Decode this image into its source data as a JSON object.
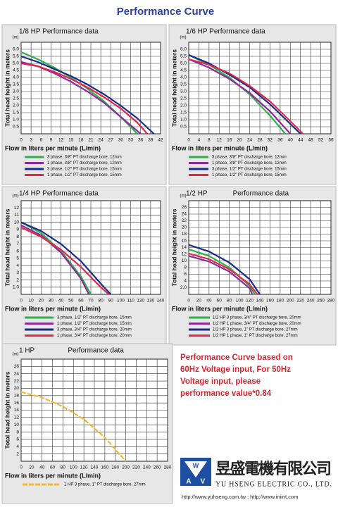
{
  "title": "Performance Curve",
  "chart_data": [
    {
      "type": "line",
      "title": "1/8 HP Performance data",
      "y_unit": "(m)",
      "ylabel": "Total head height in meters",
      "xlabel": "Flow in liters per minute (L/min)",
      "xlim": [
        0,
        42
      ],
      "xticks": [
        0,
        3,
        6,
        9,
        12,
        15,
        18,
        21,
        24,
        27,
        30,
        33,
        36,
        39,
        42
      ],
      "ylim": [
        0,
        6.5
      ],
      "yticks": [
        {
          "value": 0.5,
          "label": "0.5"
        },
        {
          "value": 1,
          "label": "1.0"
        },
        {
          "value": 1.5,
          "label": "1.5"
        },
        {
          "value": 2,
          "label": "2.0"
        },
        {
          "value": 2.5,
          "label": "2.5"
        },
        {
          "value": 3,
          "label": "3.0"
        },
        {
          "value": 3.5,
          "label": "3.5"
        },
        {
          "value": 4,
          "label": "4.0"
        },
        {
          "value": 4.5,
          "label": "4.5"
        },
        {
          "value": 5,
          "label": "5.0"
        },
        {
          "value": 5.5,
          "label": "5.5"
        },
        {
          "value": 6,
          "label": "6.0"
        }
      ],
      "grid": true,
      "series": [
        {
          "name": "3 phase, 3/8\" PT discharge bore, 12mm",
          "color": "#2db24a",
          "x": [
            0,
            5,
            10,
            15,
            20,
            25,
            30,
            35
          ],
          "values": [
            5.8,
            5.3,
            4.7,
            4.0,
            3.2,
            2.3,
            1.2,
            0
          ]
        },
        {
          "name": "1 phase, 3/8\" PT discharge bore, 12mm",
          "color": "#8e2a9e",
          "x": [
            0,
            5,
            10,
            15,
            20,
            25,
            30,
            36
          ],
          "values": [
            5.1,
            4.8,
            4.3,
            3.7,
            3.0,
            2.2,
            1.2,
            0
          ]
        },
        {
          "name": "3 phase, 1/2\" PT discharge bore, 15mm",
          "color": "#1c2a8c",
          "x": [
            0,
            5,
            10,
            15,
            20,
            25,
            30,
            35,
            40
          ],
          "values": [
            5.5,
            5.1,
            4.6,
            4.1,
            3.5,
            2.8,
            2.0,
            1.1,
            0
          ]
        },
        {
          "name": "1 phase, 1/2\" PT discharge bore, 15mm",
          "color": "#e0284a",
          "x": [
            0,
            5,
            10,
            15,
            20,
            25,
            30,
            35,
            38
          ],
          "values": [
            5.0,
            4.8,
            4.4,
            3.9,
            3.3,
            2.6,
            1.8,
            0.8,
            0
          ]
        }
      ]
    },
    {
      "type": "line",
      "title": "1/6 HP Performance data",
      "y_unit": "(m)",
      "ylabel": "Total head height in meters",
      "xlabel": "Flow in liters per minute (L/min)",
      "xlim": [
        0,
        56
      ],
      "xticks": [
        0,
        4,
        8,
        12,
        16,
        20,
        24,
        28,
        32,
        36,
        40,
        44,
        48,
        52,
        56
      ],
      "ylim": [
        0,
        6.5
      ],
      "yticks": [
        {
          "value": 0.5,
          "label": "0.5"
        },
        {
          "value": 1,
          "label": "1.0"
        },
        {
          "value": 1.5,
          "label": "1.5"
        },
        {
          "value": 2,
          "label": "2.0"
        },
        {
          "value": 2.5,
          "label": "2.5"
        },
        {
          "value": 3,
          "label": "3.0"
        },
        {
          "value": 3.5,
          "label": "3.5"
        },
        {
          "value": 4,
          "label": "4.0"
        },
        {
          "value": 4.5,
          "label": "4.5"
        },
        {
          "value": 5,
          "label": "5.0"
        },
        {
          "value": 5.5,
          "label": "5.5"
        },
        {
          "value": 6,
          "label": "6.0"
        }
      ],
      "grid": true,
      "series": [
        {
          "name": "3 phase, 3/8\" PT discharge bore, 12mm",
          "color": "#2db24a",
          "x": [
            0,
            8,
            16,
            24,
            32,
            38
          ],
          "values": [
            5.6,
            4.9,
            4.0,
            2.8,
            1.3,
            0
          ]
        },
        {
          "name": "1 phase, 3/8\" PT discharge bore, 12mm",
          "color": "#8e2a9e",
          "x": [
            0,
            8,
            16,
            24,
            32,
            40
          ],
          "values": [
            5.3,
            4.7,
            3.9,
            2.9,
            1.6,
            0
          ]
        },
        {
          "name": "3 phase, 1/2\" PT discharge bore, 15mm",
          "color": "#1c2a8c",
          "x": [
            0,
            8,
            16,
            24,
            32,
            40,
            44
          ],
          "values": [
            5.6,
            5.0,
            4.2,
            3.3,
            2.1,
            0.7,
            0
          ]
        },
        {
          "name": "1 phase, 1/2\" PT discharge bore, 15mm",
          "color": "#e0284a",
          "x": [
            0,
            8,
            16,
            24,
            32,
            40,
            45
          ],
          "values": [
            5.3,
            4.9,
            4.3,
            3.4,
            2.3,
            0.9,
            0
          ]
        }
      ]
    },
    {
      "type": "line",
      "title": "1/4 HP Performance data",
      "y_unit": "(m)",
      "ylabel": "Total head height in meters",
      "xlabel": "Flow in liters per minute (L/min)",
      "xlim": [
        0,
        140
      ],
      "xticks": [
        0,
        10,
        20,
        30,
        40,
        50,
        60,
        70,
        80,
        90,
        100,
        110,
        120,
        130,
        140
      ],
      "ylim": [
        0,
        13
      ],
      "yticks": [
        {
          "value": 1,
          "label": "1.0"
        },
        2,
        3,
        4,
        5,
        6,
        7,
        8,
        9,
        10,
        11,
        12
      ],
      "grid": true,
      "series": [
        {
          "name": "3 phase, 1/2\" PT discharge bore, 15mm",
          "color": "#2db24a",
          "x": [
            0,
            20,
            40,
            60,
            70
          ],
          "values": [
            10,
            8.5,
            6,
            2.5,
            0
          ]
        },
        {
          "name": "1 phase, 1/2\" PT discharge bore, 15mm",
          "color": "#8e2a9e",
          "x": [
            0,
            20,
            40,
            60,
            68
          ],
          "values": [
            9.6,
            8.2,
            5.8,
            2.2,
            0
          ]
        },
        {
          "name": "3 phase, 3/4\" PT discharge bore, 20mm",
          "color": "#1c2a8c",
          "x": [
            0,
            20,
            40,
            60,
            80,
            90
          ],
          "values": [
            10,
            8.8,
            7,
            4.6,
            1.5,
            0
          ]
        },
        {
          "name": "1 phase, 3/4\" PT discharge bore, 20mm",
          "color": "#e0284a",
          "x": [
            0,
            20,
            40,
            60,
            80,
            88
          ],
          "values": [
            9.3,
            8.0,
            6.2,
            3.8,
            1.0,
            0
          ]
        }
      ]
    },
    {
      "type": "line",
      "title": "1/2 HP",
      "subtitle": "Performance data",
      "y_unit": "(m)",
      "ylabel": "Total head height in meters",
      "xlabel": "Flow in liters per minute (L/min)",
      "xlim": [
        0,
        280
      ],
      "xticks": [
        0,
        20,
        40,
        60,
        80,
        100,
        120,
        140,
        160,
        180,
        200,
        220,
        240,
        260,
        280
      ],
      "ylim": [
        0,
        28
      ],
      "yticks": [
        {
          "value": 2,
          "label": "2.0"
        },
        4,
        6,
        8,
        10,
        12,
        14,
        16,
        18,
        20,
        22,
        24,
        26
      ],
      "grid": true,
      "series": [
        {
          "name": "1/2 HP 3 phase, 3/4\" PT discharge bore, 20mm",
          "color": "#2db24a",
          "x": [
            0,
            40,
            80,
            120,
            130
          ],
          "values": [
            13.5,
            11.5,
            8,
            2.5,
            0
          ]
        },
        {
          "name": "1/2 HP 1 phase, 3/4\" PT discharge bore, 20mm",
          "color": "#8e2a9e",
          "x": [
            0,
            40,
            80,
            120,
            125
          ],
          "values": [
            11.5,
            9.8,
            6.8,
            1.8,
            0
          ]
        },
        {
          "name": "1/2 HP 3 phase,   1\" PT discharge bore, 27mm",
          "color": "#1c2a8c",
          "x": [
            0,
            40,
            80,
            120,
            140
          ],
          "values": [
            14.8,
            12.8,
            9.5,
            4.5,
            0
          ]
        },
        {
          "name": "1/2 HP 1 phase,   1\" PT discharge bore, 27mm",
          "color": "#e0284a",
          "x": [
            0,
            40,
            80,
            120,
            135
          ],
          "values": [
            12.2,
            10.5,
            7.5,
            3,
            0
          ]
        }
      ]
    },
    {
      "type": "line",
      "title": "1 HP",
      "subtitle": "Performance data",
      "y_unit": "(m)",
      "ylabel": "Total head height in meters",
      "xlabel": "Flow in liters per minute (L/min)",
      "xlim": [
        0,
        280
      ],
      "xticks": [
        0,
        20,
        40,
        60,
        80,
        100,
        120,
        140,
        160,
        180,
        200,
        220,
        240,
        260,
        280
      ],
      "ylim": [
        0,
        28
      ],
      "yticks": [
        2,
        4,
        6,
        8,
        10,
        12,
        14,
        16,
        18,
        20,
        22,
        24,
        26
      ],
      "grid": true,
      "series": [
        {
          "name": "1 HP 3 phase,   1\" PT discharge bore, 27mm",
          "color": "#f5b833",
          "dashed": true,
          "x": [
            0,
            40,
            80,
            120,
            160,
            200
          ],
          "values": [
            19,
            17.5,
            15,
            11.5,
            6.5,
            0
          ]
        }
      ]
    }
  ],
  "note": [
    "Performance Curve based on",
    "60Hz Voltage input, For 50Hz",
    "Voltage input, please",
    "performance value*0.84"
  ],
  "company": {
    "logo": [
      "W",
      "A",
      "V"
    ],
    "name_zh": "昱盛電機有限公司",
    "name_en": "YU HSENG ELECTRIC CO., LTD.",
    "urls": "http://www.yuhseng.com.tw ; http://www.iniint.com"
  }
}
